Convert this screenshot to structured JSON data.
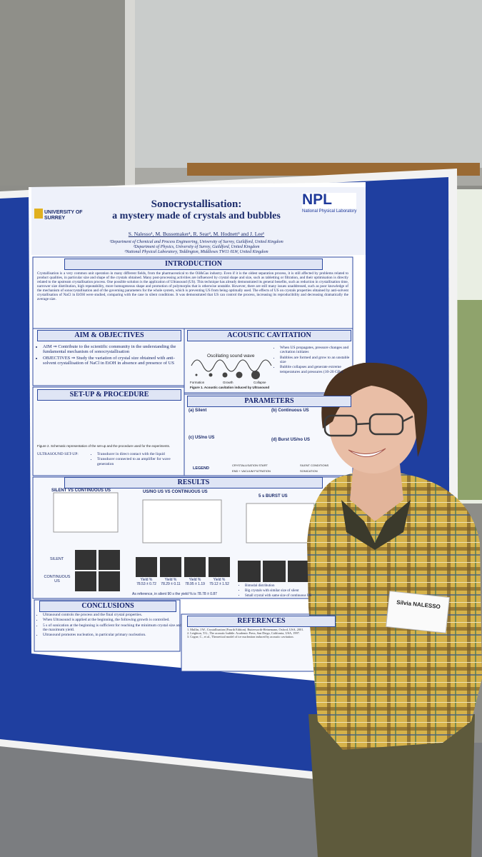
{
  "poster": {
    "logo_left": "UNIVERSITY OF SURREY",
    "logo_right": "NPL",
    "logo_right_sub": "National Physical Laboratory",
    "title": "Sonocrystallisation:",
    "subtitle": "a mystery made of crystals and bubbles",
    "authors": "S. Nalesso¹, M. Bussemaker¹, R. Sear², M. Hodnett³ and J. Lee¹",
    "affiliations": [
      "¹Department of Chemical and Process Engineering, University of Surrey, Guildford, United Kingdom",
      "²Department of Physics, University of Surrey, Guildford, United Kingdom",
      "³National Physical Laboratory, Teddington, Middlesex TW11 0LW, United Kingdom"
    ],
    "introduction": {
      "heading": "INTRODUCTION",
      "text": "Crystallisation is a very common unit operation in many different fields, from the pharmaceutical to the Oil&Gas industry. Even if it is the oldest separation process, it is still affected by problems related to product qualities, in particular size and shape of the crystals obtained. Many post-processing activities are influenced by crystal shape and size, such as tabletting or filtration, and their optimisation is directly related to the upstream crystallisation process. One possible solution is the application of Ultrasound (US). This technique has already demonstrated its general benefits, such as reduction in crystallisation time, narrower size distribution, high repeatability, more homogeneous shape and promotion of polymorphs that is otherwise unstable. However, there are still many issues unaddressed, such as poor knowledge of the mechanism of sonocrystallisation and of the governing parameters for the whole system, which is preventing US from being optimally used. The effects of US on crystals properties obtained by anti-solvent crystallisation of NaCl in EtOH were studied, comparing with the case in silent conditions. It was demonstrated that US can control the process, increasing its reproducibility and decreasing dramatically the average size."
    },
    "aim": {
      "heading": "AIM & OBJECTIVES",
      "items": [
        "AIM ⇒ Contribute to the scientific community in the understanding the fundamental mechanism of sonocrystallisation",
        "OBJECTIVES ⇒ Study the variation of crystal size obtained with anti-solvent crystallisation of NaCl in EtOH in absence and presence of US"
      ]
    },
    "cavitation": {
      "heading": "ACOUSTIC CAVITATION",
      "wave_label": "Oscillating sound wave",
      "stages": [
        "Formation",
        "Growth",
        "Collapse"
      ],
      "caption": "Figure 1. Acoustic cavitation induced by Ultrasound",
      "items": [
        "When US propagates, pressure changes and cavitation initiates",
        "Bubbles are formed and grow to an unstable size",
        "Bubble collapses and generate extreme temperatures and pressures (10-20 GPa)"
      ]
    },
    "setup": {
      "heading": "SET-UP & PROCEDURE",
      "caption": "Figure 2. Schematic representation of the set-up and the procedure used for the experiments.",
      "label": "ULTRASOUND SET-UP:",
      "items": [
        "Transducer in direct contact with the liquid",
        "Transducer connected to an amplifier for wave generation"
      ]
    },
    "parameters": {
      "heading": "PARAMETERS",
      "cases": [
        "(a) Silent",
        "(b) Continuous US",
        "(c) US/no US",
        "(d) Burst US/no US"
      ],
      "legend": "LEGEND",
      "legend_items": [
        "CRYSTALLISATION START",
        "END + VACUUM FILTRATION",
        "SILENT CONDITIONS",
        "SONICATION"
      ]
    },
    "results": {
      "heading": "RESULTS",
      "panels": [
        "SILENT VS CONTINUOUS US",
        "US/NO US VS CONTINUOUS US",
        "5 s BURST US"
      ],
      "rows": [
        "SILENT",
        "CONTINUOUS US"
      ],
      "yields": [
        "Yield % 78.53 ± 0.72",
        "Yield % 78.29 ± 0.11",
        "Yield % 78.95 ± 1.19",
        "Yield % 79.12 ± 1.52"
      ],
      "reference": "As reference, in silent 90 s the yield % is 78.78 ± 0.87",
      "bullets": [
        "Bimodal distribution",
        "Big crystals with similar size of silent",
        "Small crystal with same size of continuous US"
      ]
    },
    "conclusions": {
      "heading": "CONCLUSIONS",
      "items": [
        "Ultrasound controls the process and the final crystal properties.",
        "When Ultrasound is applied at the beginning, the following growth is controlled.",
        "5 s of sonication at the beginning is sufficient for reaching the minimum crystal size and the maximum yield.",
        "Ultrasound promotes nucleation, in particular primary nucleation."
      ]
    },
    "references": {
      "heading": "REFERENCES",
      "items": [
        "1. Mullin, J.W., Crystallization (Fourth Edition). Butterworth-Heinemann, Oxford, USA, 2001.",
        "2. Leighton, T.G., The acoustic bubble. Academic Press, San Diego, California, USA, 1997.",
        "3. Cogne, C., et al., Theoretical model of ice nucleation induced by acoustic cavitation."
      ]
    }
  },
  "badge": {
    "name": "Silvia NALESSO"
  }
}
